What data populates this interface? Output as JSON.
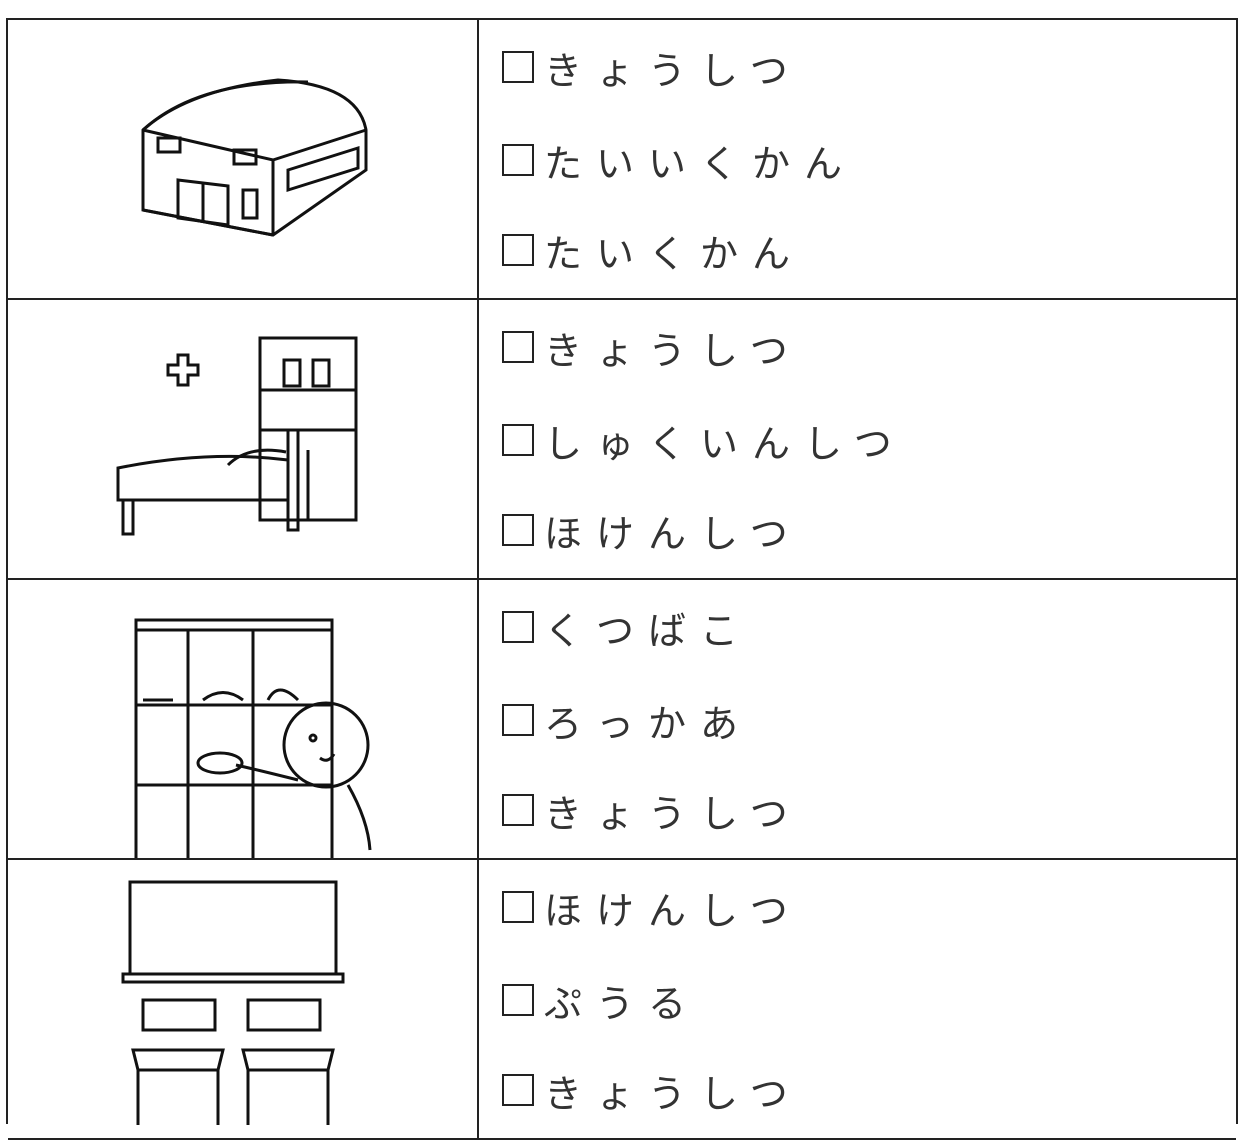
{
  "rows": [
    {
      "options": [
        "きょうしつ",
        "たいいくかん",
        "たいくかん"
      ]
    },
    {
      "options": [
        "きょうしつ",
        "しゅくいんしつ",
        "ほけんしつ"
      ]
    },
    {
      "options": [
        "くつばこ",
        "ろっかあ",
        "きょうしつ"
      ]
    },
    {
      "options": [
        "ほけんしつ",
        "ぷうる",
        "きょうしつ"
      ]
    }
  ]
}
